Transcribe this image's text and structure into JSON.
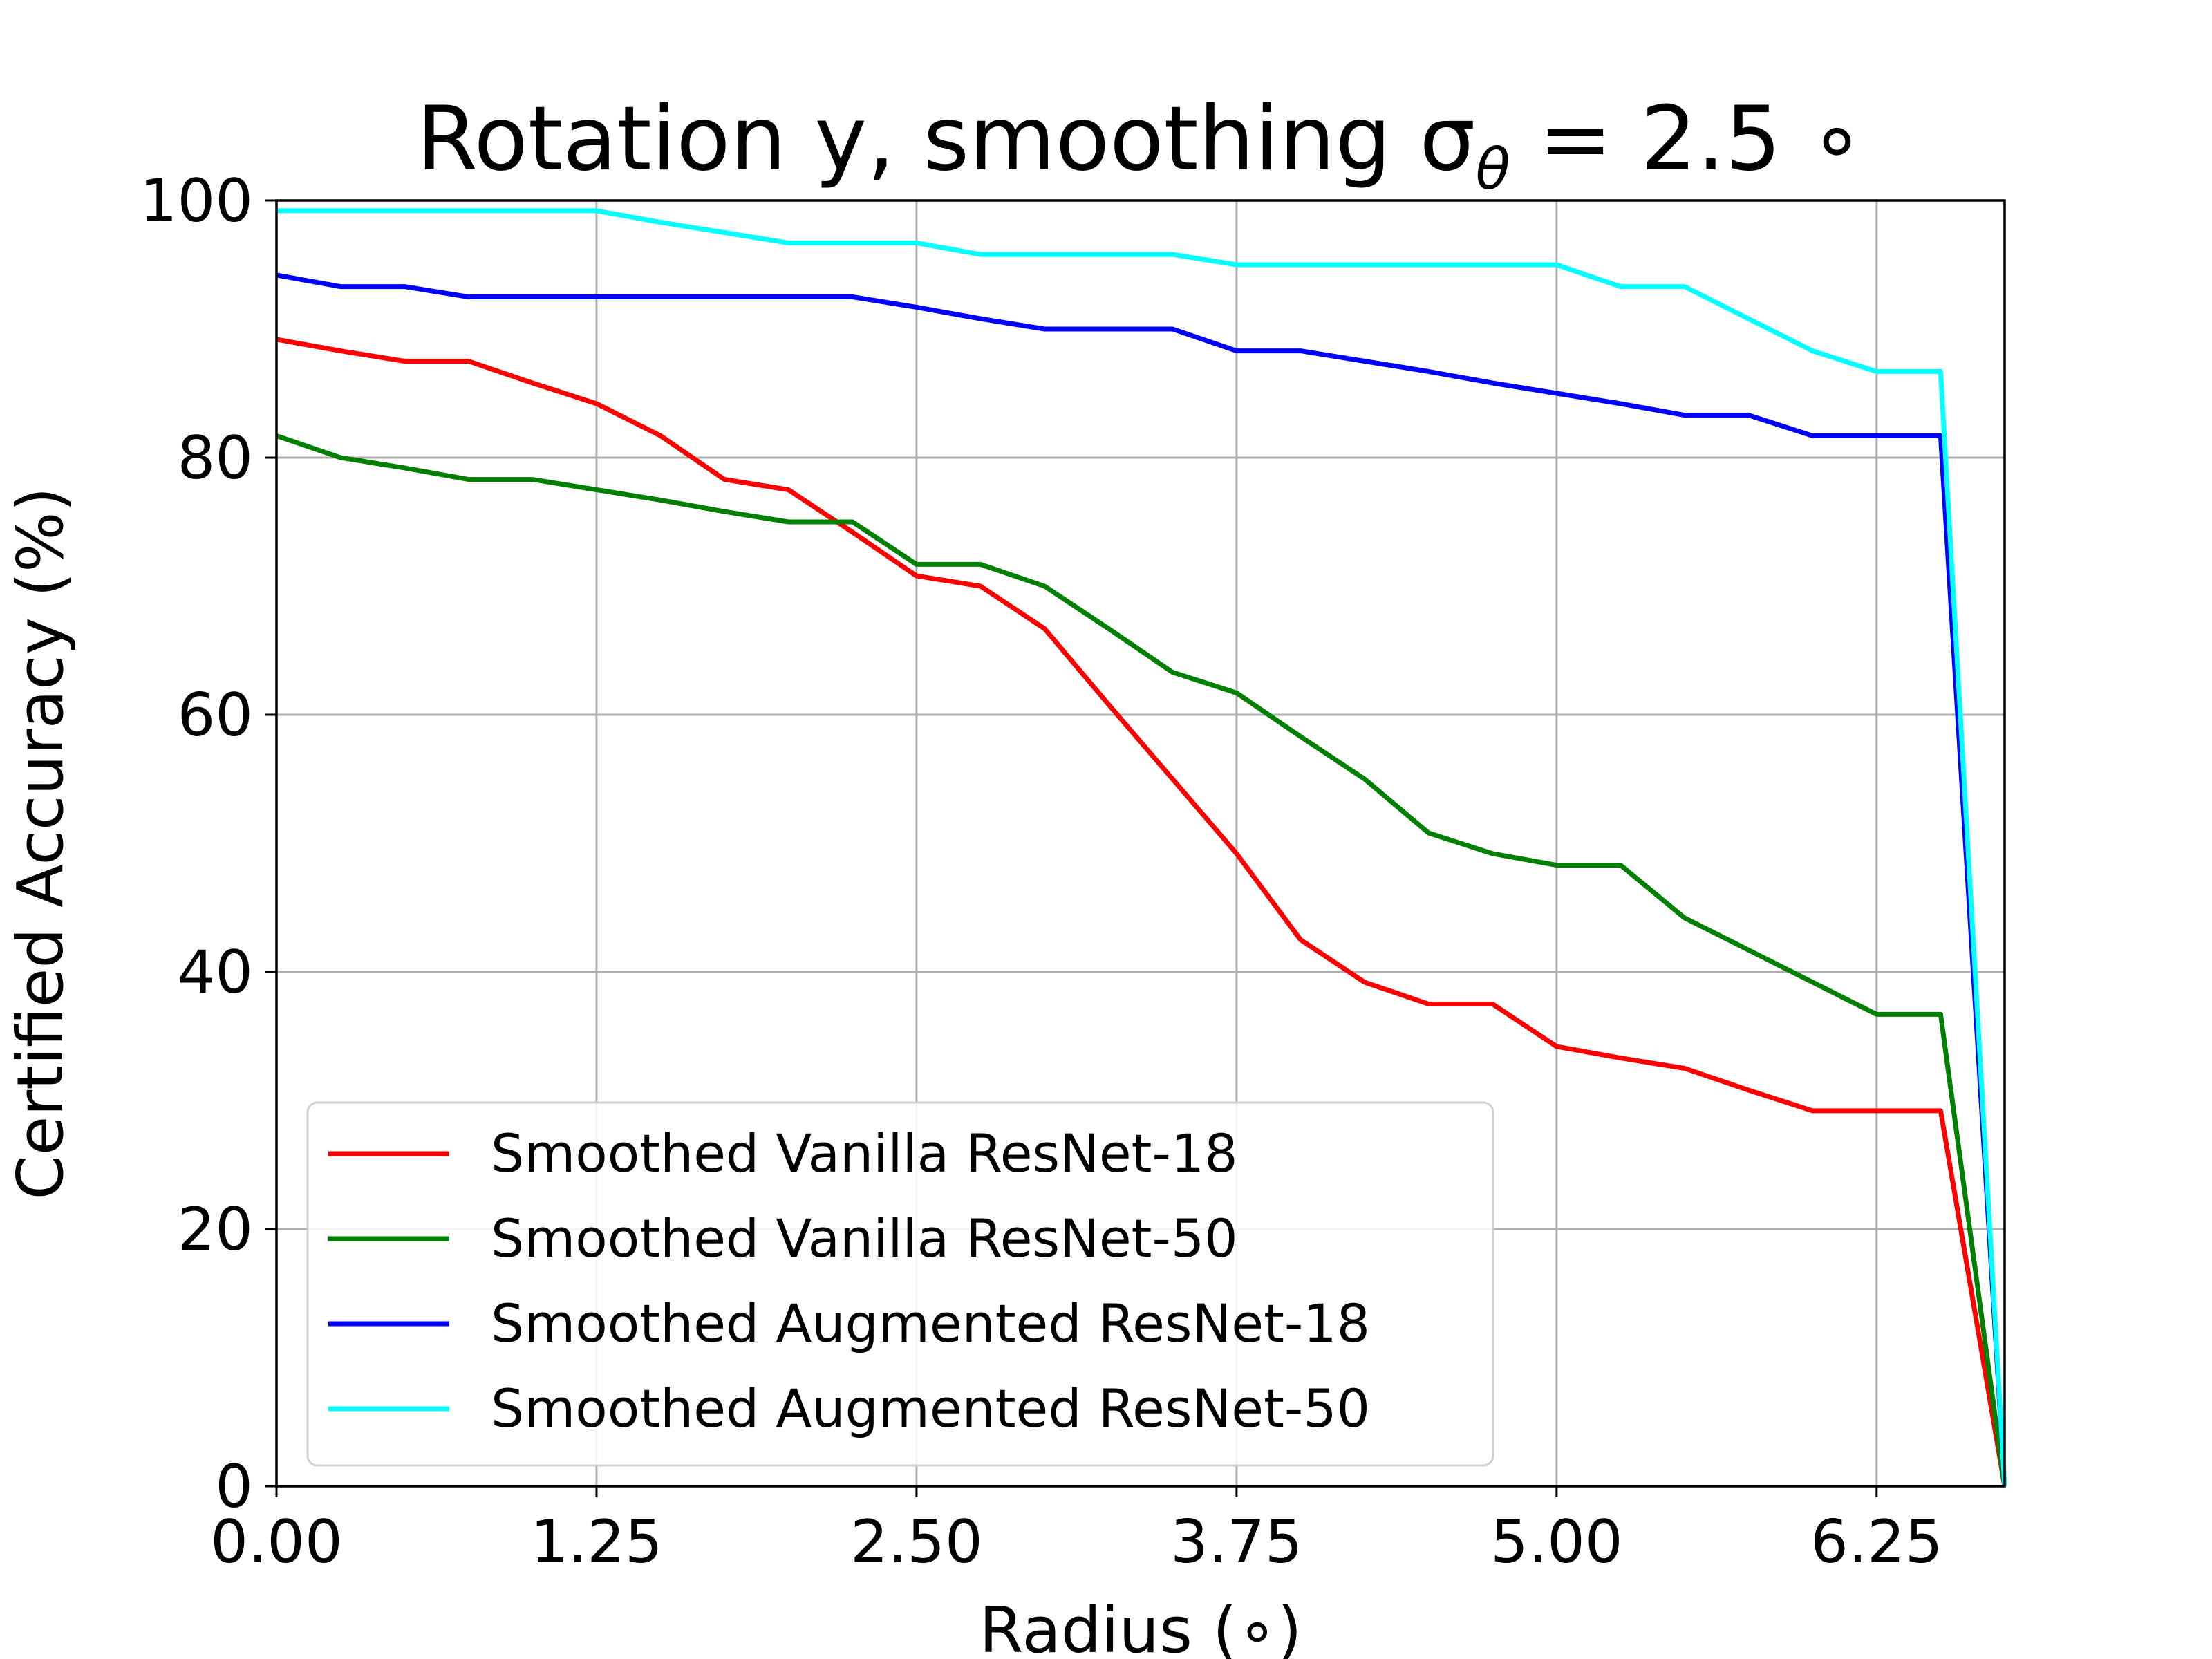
{
  "chart_data": {
    "type": "line",
    "title": "Rotation y, smoothing σ",
    "title_sub": "θ",
    "title_suffix": " = 2.5 ∘",
    "xlabel": "Radius (∘)",
    "ylabel": "Certified Accuracy (%)",
    "xlim": [
      0,
      6.75
    ],
    "ylim": [
      0,
      100
    ],
    "xticks": [
      "0.00",
      "1.25",
      "2.50",
      "3.75",
      "5.00",
      "6.25"
    ],
    "yticks": [
      "0",
      "20",
      "40",
      "60",
      "80",
      "100"
    ],
    "grid": true,
    "legend_position": "lower-left",
    "series": [
      {
        "name": "Smoothed Vanilla ResNet-18",
        "color": "#ff0000",
        "points": [
          [
            0,
            89.2
          ],
          [
            0.25,
            88.3
          ],
          [
            0.5,
            87.5
          ],
          [
            0.75,
            87.5
          ],
          [
            1.0,
            85.8
          ],
          [
            1.25,
            84.2
          ],
          [
            1.5,
            81.7
          ],
          [
            1.75,
            78.3
          ],
          [
            2.0,
            77.5
          ],
          [
            2.25,
            74.2
          ],
          [
            2.5,
            70.8
          ],
          [
            2.75,
            70.0
          ],
          [
            3.0,
            66.7
          ],
          [
            3.25,
            60.8
          ],
          [
            3.5,
            55.0
          ],
          [
            3.75,
            49.2
          ],
          [
            4.0,
            42.5
          ],
          [
            4.25,
            39.2
          ],
          [
            4.5,
            37.5
          ],
          [
            4.75,
            37.5
          ],
          [
            5.0,
            34.2
          ],
          [
            5.25,
            33.3
          ],
          [
            5.5,
            32.5
          ],
          [
            5.75,
            30.8
          ],
          [
            6.0,
            29.2
          ],
          [
            6.25,
            29.2
          ],
          [
            6.5,
            29.2
          ],
          [
            6.75,
            0
          ]
        ]
      },
      {
        "name": "Smoothed Vanilla ResNet-50",
        "color": "#008000",
        "points": [
          [
            0,
            81.7
          ],
          [
            0.25,
            80.0
          ],
          [
            0.5,
            79.2
          ],
          [
            0.75,
            78.3
          ],
          [
            1.0,
            78.3
          ],
          [
            1.25,
            77.5
          ],
          [
            1.5,
            76.7
          ],
          [
            1.75,
            75.8
          ],
          [
            2.0,
            75.0
          ],
          [
            2.25,
            75.0
          ],
          [
            2.5,
            71.7
          ],
          [
            2.75,
            71.7
          ],
          [
            3.0,
            70.0
          ],
          [
            3.25,
            66.7
          ],
          [
            3.5,
            63.3
          ],
          [
            3.75,
            61.7
          ],
          [
            4.0,
            58.3
          ],
          [
            4.25,
            55.0
          ],
          [
            4.5,
            50.8
          ],
          [
            4.75,
            49.2
          ],
          [
            5.0,
            48.3
          ],
          [
            5.25,
            48.3
          ],
          [
            5.5,
            44.2
          ],
          [
            5.75,
            41.7
          ],
          [
            6.0,
            39.2
          ],
          [
            6.25,
            36.7
          ],
          [
            6.5,
            36.7
          ],
          [
            6.75,
            0
          ]
        ]
      },
      {
        "name": "Smoothed Augmented ResNet-18",
        "color": "#0000ff",
        "points": [
          [
            0,
            94.2
          ],
          [
            0.25,
            93.3
          ],
          [
            0.5,
            93.3
          ],
          [
            0.75,
            92.5
          ],
          [
            1.0,
            92.5
          ],
          [
            1.25,
            92.5
          ],
          [
            1.5,
            92.5
          ],
          [
            1.75,
            92.5
          ],
          [
            2.0,
            92.5
          ],
          [
            2.25,
            92.5
          ],
          [
            2.5,
            91.7
          ],
          [
            2.75,
            90.8
          ],
          [
            3.0,
            90.0
          ],
          [
            3.25,
            90.0
          ],
          [
            3.5,
            90.0
          ],
          [
            3.75,
            88.3
          ],
          [
            4.0,
            88.3
          ],
          [
            4.25,
            87.5
          ],
          [
            4.5,
            86.7
          ],
          [
            4.75,
            85.8
          ],
          [
            5.0,
            85.0
          ],
          [
            5.25,
            84.2
          ],
          [
            5.5,
            83.3
          ],
          [
            5.75,
            83.3
          ],
          [
            6.0,
            81.7
          ],
          [
            6.25,
            81.7
          ],
          [
            6.5,
            81.7
          ],
          [
            6.75,
            0
          ]
        ]
      },
      {
        "name": "Smoothed Augmented ResNet-50",
        "color": "#00ffff",
        "points": [
          [
            0,
            99.2
          ],
          [
            0.25,
            99.2
          ],
          [
            0.5,
            99.2
          ],
          [
            0.75,
            99.2
          ],
          [
            1.0,
            99.2
          ],
          [
            1.25,
            99.2
          ],
          [
            1.5,
            98.3
          ],
          [
            1.75,
            97.5
          ],
          [
            2.0,
            96.7
          ],
          [
            2.25,
            96.7
          ],
          [
            2.5,
            96.7
          ],
          [
            2.75,
            95.8
          ],
          [
            3.0,
            95.8
          ],
          [
            3.25,
            95.8
          ],
          [
            3.5,
            95.8
          ],
          [
            3.75,
            95.0
          ],
          [
            4.0,
            95.0
          ],
          [
            4.25,
            95.0
          ],
          [
            4.5,
            95.0
          ],
          [
            4.75,
            95.0
          ],
          [
            5.0,
            95.0
          ],
          [
            5.25,
            93.3
          ],
          [
            5.5,
            93.3
          ],
          [
            5.75,
            90.8
          ],
          [
            6.0,
            88.3
          ],
          [
            6.25,
            86.7
          ],
          [
            6.5,
            86.7
          ],
          [
            6.75,
            0
          ]
        ]
      }
    ]
  }
}
